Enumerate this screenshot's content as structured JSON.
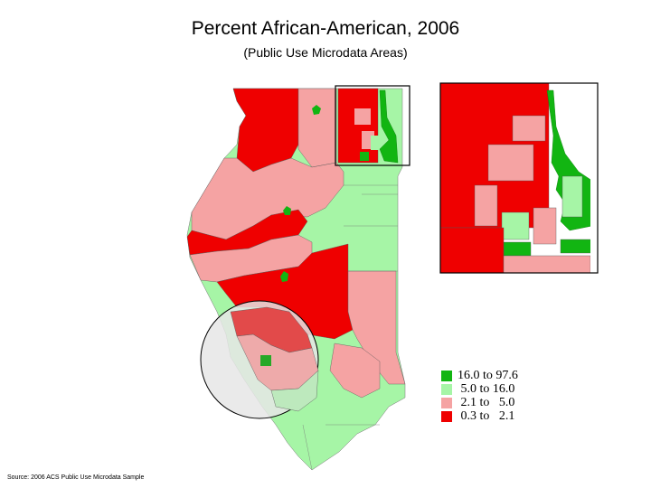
{
  "title": "Percent African-American, 2006",
  "subtitle": "(Public Use Microdata Areas)",
  "source": "Source: 2006 ACS Public Use Microdata Sample",
  "legend": [
    {
      "label": "16.0 to 97.6",
      "color": "#12b512"
    },
    {
      "label": " 5.0 to 16.0",
      "color": "#a6f5a6"
    },
    {
      "label": " 2.1 to   5.0",
      "color": "#f5a3a3"
    },
    {
      "label": " 0.3 to   2.1",
      "color": "#ef0000"
    }
  ],
  "colors": {
    "dark_green": "#12b512",
    "light_green": "#a6f5a6",
    "pink": "#f5a3a3",
    "red": "#ef0000",
    "highlight_circle": "#e6e6e6"
  }
}
